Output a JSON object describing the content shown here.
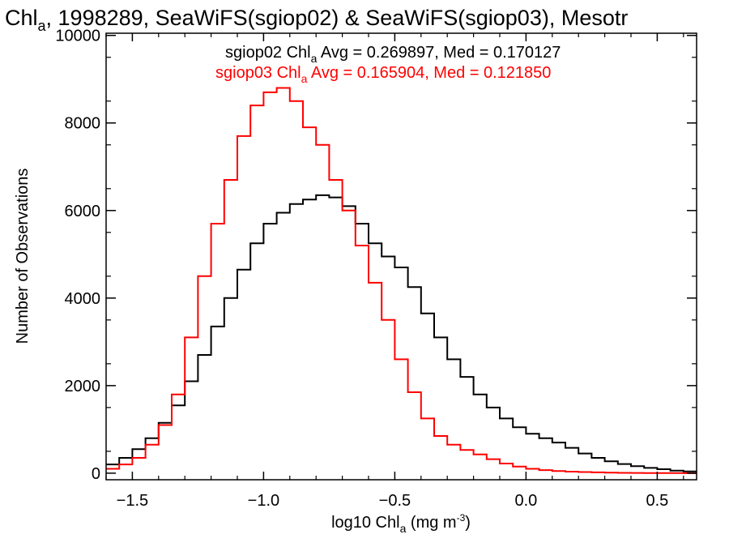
{
  "chart_data": {
    "type": "line",
    "title_main": "Chl",
    "title_sub": "a",
    "title_rest": ", 1998289, SeaWiFS(sgiop02) & SeaWiFS(sgiop03), Mesotr",
    "xlabel_main": "log10 Chl",
    "xlabel_sub": "a",
    "xlabel_unit": " (mg m",
    "xlabel_sup": "-3",
    "xlabel_close": ")",
    "ylabel": "Number of Observations",
    "xlim": [
      -1.6,
      0.65
    ],
    "ylim": [
      -150,
      10050
    ],
    "x_ticks": [
      -1.5,
      -1.0,
      -0.5,
      0.0,
      0.5
    ],
    "x_tick_labels": [
      "−1.5",
      "−1.0",
      "−0.5",
      "0.0",
      "0.5"
    ],
    "y_ticks": [
      0,
      2000,
      4000,
      6000,
      8000,
      10000
    ],
    "y_tick_labels": [
      "0",
      "2000",
      "4000",
      "6000",
      "8000",
      "10000"
    ],
    "legend": [
      {
        "prefix": "sgiop02 Chl",
        "sub": "a",
        "suffix": " Avg = 0.269897, Med = 0.170127",
        "color": "#000000"
      },
      {
        "prefix": "sgiop03 Chl",
        "sub": "a",
        "suffix": " Avg = 0.165904, Med = 0.121850",
        "color": "#ff0000"
      }
    ],
    "series": [
      {
        "color": "#000000",
        "x": [
          -1.6,
          -1.55,
          -1.5,
          -1.45,
          -1.4,
          -1.35,
          -1.3,
          -1.25,
          -1.2,
          -1.15,
          -1.1,
          -1.05,
          -1.0,
          -0.95,
          -0.9,
          -0.85,
          -0.8,
          -0.75,
          -0.7,
          -0.65,
          -0.6,
          -0.55,
          -0.5,
          -0.45,
          -0.4,
          -0.35,
          -0.3,
          -0.25,
          -0.2,
          -0.15,
          -0.1,
          -0.05,
          0.0,
          0.05,
          0.1,
          0.15,
          0.2,
          0.25,
          0.3,
          0.35,
          0.4,
          0.45,
          0.5,
          0.55,
          0.6,
          0.65
        ],
        "y": [
          200,
          350,
          550,
          800,
          1150,
          1550,
          2100,
          2700,
          3350,
          4000,
          4650,
          5250,
          5700,
          5950,
          6150,
          6250,
          6350,
          6300,
          6100,
          5700,
          5250,
          4950,
          4700,
          4250,
          3650,
          3100,
          2600,
          2200,
          1800,
          1500,
          1250,
          1050,
          900,
          800,
          700,
          580,
          450,
          350,
          270,
          210,
          160,
          120,
          90,
          60,
          40,
          20
        ]
      },
      {
        "color": "#ff0000",
        "x": [
          -1.6,
          -1.55,
          -1.5,
          -1.45,
          -1.4,
          -1.35,
          -1.3,
          -1.25,
          -1.2,
          -1.15,
          -1.1,
          -1.05,
          -1.0,
          -0.95,
          -0.9,
          -0.85,
          -0.8,
          -0.75,
          -0.7,
          -0.65,
          -0.6,
          -0.55,
          -0.5,
          -0.45,
          -0.4,
          -0.35,
          -0.3,
          -0.25,
          -0.2,
          -0.15,
          -0.1,
          -0.05,
          0.0,
          0.05,
          0.1,
          0.15,
          0.2,
          0.25,
          0.3,
          0.35,
          0.4,
          0.45,
          0.5,
          0.55,
          0.6,
          0.65
        ],
        "y": [
          100,
          200,
          350,
          650,
          1100,
          1800,
          3100,
          4500,
          5700,
          6700,
          7700,
          8400,
          8700,
          8800,
          8500,
          7900,
          7500,
          6700,
          6000,
          5200,
          4350,
          3500,
          2600,
          1850,
          1250,
          850,
          650,
          530,
          430,
          320,
          220,
          150,
          100,
          70,
          50,
          35,
          25,
          18,
          12,
          8,
          5,
          3,
          2,
          1,
          0,
          0
        ]
      }
    ]
  }
}
